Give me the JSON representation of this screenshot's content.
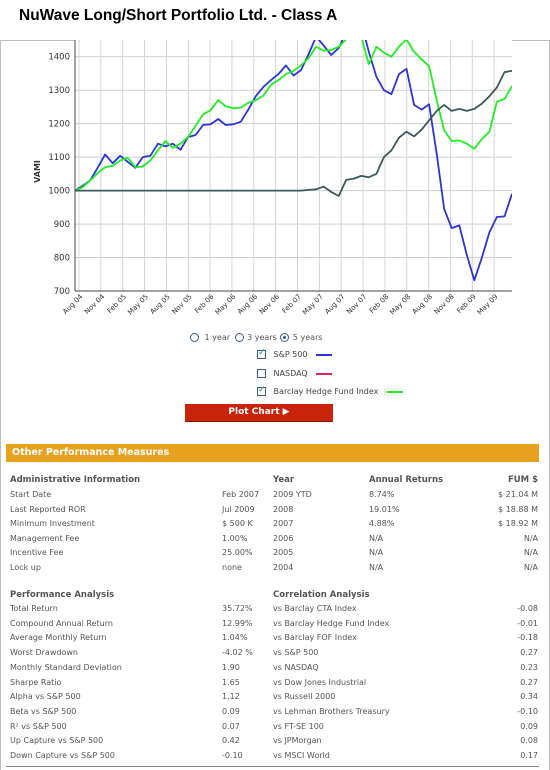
{
  "title": "NuWave Long/Short Portfolio Ltd. - Class A",
  "chart_data": {
    "type": "line",
    "ylabel": "VAMI",
    "ylim": [
      700,
      1450
    ],
    "yticks": [
      700,
      800,
      900,
      1000,
      1100,
      1200,
      1300,
      1400
    ],
    "x_tick_labels": [
      "Aug 04",
      "Nov 04",
      "Feb 05",
      "May 05",
      "Aug 05",
      "Nov 05",
      "Feb 06",
      "May 06",
      "Aug 06",
      "Nov 06",
      "Feb 07",
      "May 07",
      "Aug 07",
      "Nov 07",
      "Feb 08",
      "May 08",
      "Aug 08",
      "Nov 08",
      "Feb 09",
      "May 09"
    ],
    "grid": true,
    "series": [
      {
        "color": "#2b34d8",
        "values": [
          1000,
          1014,
          1030,
          1068,
          1108,
          1082,
          1104,
          1086,
          1068,
          1100,
          1104,
          1140,
          1132,
          1140,
          1122,
          1160,
          1166,
          1196,
          1198,
          1214,
          1196,
          1198,
          1206,
          1242,
          1282,
          1310,
          1330,
          1348,
          1374,
          1344,
          1360,
          1408,
          1460,
          1434,
          1405,
          1426,
          1474,
          1503,
          1500,
          1415,
          1340,
          1300,
          1288,
          1348,
          1364,
          1256,
          1242,
          1258,
          1110,
          945,
          888,
          896,
          808,
          732,
          800,
          875,
          921,
          923,
          990
        ]
      },
      {
        "color": "#22ee22",
        "values": [
          1000,
          1010,
          1030,
          1052,
          1070,
          1074,
          1090,
          1098,
          1070,
          1072,
          1090,
          1120,
          1148,
          1128,
          1140,
          1160,
          1194,
          1228,
          1240,
          1270,
          1252,
          1246,
          1248,
          1262,
          1270,
          1284,
          1316,
          1330,
          1348,
          1358,
          1374,
          1396,
          1430,
          1418,
          1420,
          1430,
          1452,
          1530,
          1460,
          1378,
          1430,
          1412,
          1400,
          1430,
          1452,
          1414,
          1392,
          1372,
          1270,
          1180,
          1148,
          1150,
          1140,
          1125,
          1154,
          1176,
          1266,
          1274,
          1312
        ]
      },
      {
        "color": "#3a5a5a",
        "values": [
          1000,
          1000,
          1000,
          1000,
          1000,
          1000,
          1000,
          1000,
          1000,
          1000,
          1000,
          1000,
          1000,
          1000,
          1000,
          1000,
          1000,
          1000,
          1000,
          1000,
          1000,
          1000,
          1000,
          1000,
          1000,
          1000,
          1000,
          1000,
          1000,
          1000,
          1000,
          1002,
          1004,
          1012,
          996,
          984,
          1032,
          1036,
          1044,
          1040,
          1050,
          1100,
          1120,
          1158,
          1176,
          1162,
          1182,
          1210,
          1238,
          1256,
          1238,
          1244,
          1238,
          1244,
          1260,
          1282,
          1308,
          1354,
          1358
        ]
      }
    ]
  },
  "controls": {
    "options": [
      "1 year",
      "3 years",
      "5 years"
    ],
    "legend": [
      {
        "label": "S&P 500",
        "checked": true,
        "color": "#2b34d8"
      },
      {
        "label": "NASDAQ",
        "checked": false,
        "color": "#e02050"
      },
      {
        "label": "Barclay Hedge Fund Index",
        "checked": true,
        "color": "#22ee22"
      }
    ],
    "plot_button": "Plot Chart ▶"
  },
  "section_title": "Other Performance Measures",
  "admin": {
    "header": "Administrative Information",
    "rows": [
      {
        "label": "Start Date",
        "value": "Feb 2007"
      },
      {
        "label": "Last Reported ROR",
        "value": "Jul 2009"
      },
      {
        "label": "Minimum Investment",
        "value": "$ 500 K"
      },
      {
        "label": "Management Fee",
        "value": "1.00%"
      },
      {
        "label": "Incentive Fee",
        "value": "25.00%"
      },
      {
        "label": "Lock up",
        "value": "none"
      }
    ]
  },
  "returns": {
    "year_header": "Year",
    "ar_header": "Annual Returns",
    "fum_header": "FUM $",
    "rows": [
      {
        "year": "2009 YTD",
        "ret": "8.74%",
        "fum": "$ 21.04 M"
      },
      {
        "year": "2008",
        "ret": "19.01%",
        "fum": "$ 18.88 M"
      },
      {
        "year": "2007",
        "ret": "4.88%",
        "fum": "$ 18.92 M"
      },
      {
        "year": "2006",
        "ret": "N/A",
        "fum": "N/A"
      },
      {
        "year": "2005",
        "ret": "N/A",
        "fum": "N/A"
      },
      {
        "year": "2004",
        "ret": "N/A",
        "fum": "N/A"
      }
    ]
  },
  "performance": {
    "header": "Performance Analysis",
    "rows": [
      {
        "label": "Total Return",
        "value": "35.72%"
      },
      {
        "label": "Compound Annual Return",
        "value": "12.99%"
      },
      {
        "label": "Average Monthly Return",
        "value": "1.04%"
      },
      {
        "label": "Worst Drawdown",
        "value": "-4.02 %"
      },
      {
        "label": "Monthly Standard Deviation",
        "value": "1.90"
      },
      {
        "label": "Sharpe Ratio",
        "value": "1.65"
      },
      {
        "label": "Alpha vs S&P 500",
        "value": "1.12"
      },
      {
        "label": "Beta vs S&P 500",
        "value": "0.09"
      },
      {
        "label": "R² vs S&P 500",
        "value": "0.07"
      },
      {
        "label": "Up Capture vs S&P 500",
        "value": "0.42"
      },
      {
        "label": "Down Capture vs S&P 500",
        "value": "-0.10"
      }
    ]
  },
  "correlation": {
    "header": "Correlation Analysis",
    "rows": [
      {
        "label": "vs Barclay CTA Index",
        "value": "-0.08"
      },
      {
        "label": "vs Barclay Hedge Fund Index",
        "value": "-0.01"
      },
      {
        "label": "vs Barclay FOF Index",
        "value": "-0.18"
      },
      {
        "label": "vs S&P 500",
        "value": "0.27"
      },
      {
        "label": "vs NASDAQ",
        "value": "0.23"
      },
      {
        "label": "vs Dow Jones Industrial",
        "value": "0.27"
      },
      {
        "label": "vs Russell 2000",
        "value": "0.34"
      },
      {
        "label": "vs Lehman Brothers Treasury",
        "value": "-0.10"
      },
      {
        "label": "vs FT-SE 100",
        "value": "0.09"
      },
      {
        "label": "vs JPMorgan",
        "value": "0.08"
      },
      {
        "label": "vs MSCI World",
        "value": "0.17"
      }
    ]
  }
}
